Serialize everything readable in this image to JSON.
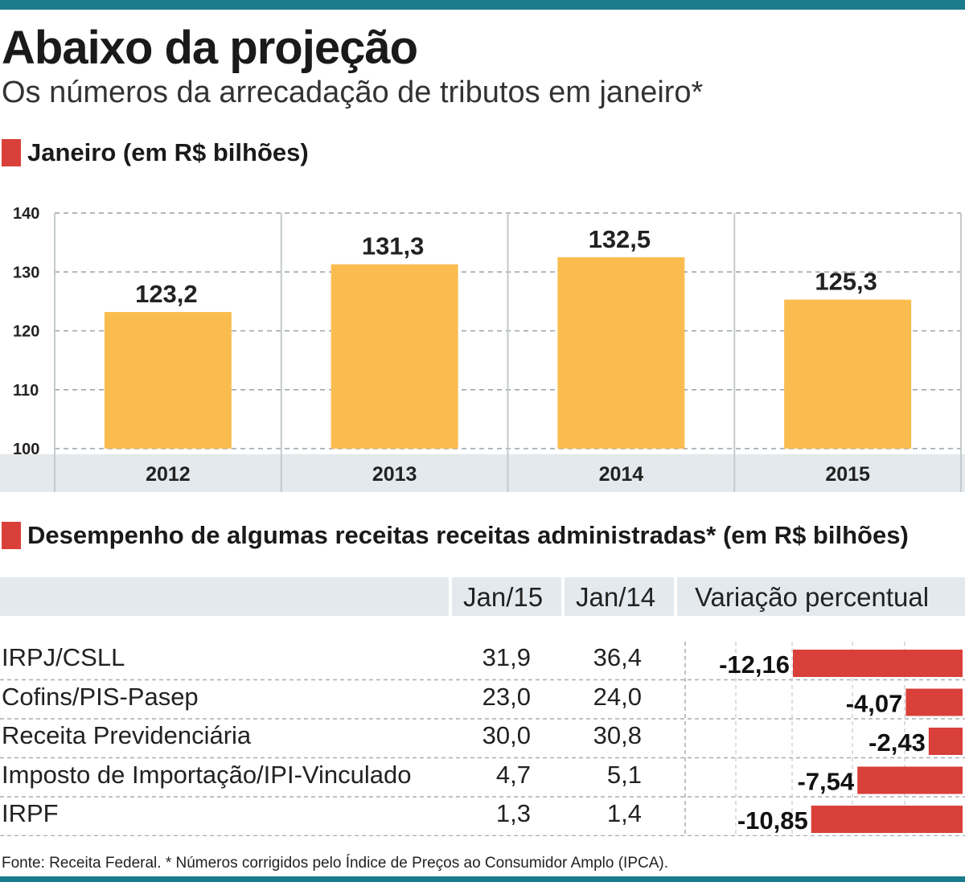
{
  "title": "Abaixo da projeção",
  "subtitle": "Os números da arrecadação de tributos em janeiro*",
  "section1": {
    "label": "Janeiro (em R$ bilhões)"
  },
  "section2": {
    "label": "Desempenho de algumas receitas  receitas administradas* (em R$ bilhões)"
  },
  "colors": {
    "accent": "#d9403a",
    "bar": "#fbbc4f",
    "brand": "#1b7a8c",
    "band": "#e3e9ed"
  },
  "chart_data": [
    {
      "type": "bar",
      "title": "Janeiro (em R$ bilhões)",
      "categories": [
        "2012",
        "2013",
        "2014",
        "2015"
      ],
      "values": [
        123.2,
        131.3,
        132.5,
        125.3
      ],
      "value_labels": [
        "123,2",
        "131,3",
        "132,5",
        "125,3"
      ],
      "yticks": [
        "100",
        "110",
        "120",
        "130",
        "140"
      ],
      "ylim": [
        100,
        140
      ],
      "xlabel": "",
      "ylabel": ""
    },
    {
      "type": "bar",
      "title": "Variação percentual",
      "categories": [
        "IRPJ/CSLL",
        "Cofins/PIS-Pasep",
        "Receita Previdenciária",
        "Imposto de Importação/IPI-Vinculado",
        "IRPF"
      ],
      "values": [
        -12.16,
        -4.07,
        -2.43,
        -7.54,
        -10.85
      ],
      "value_labels": [
        "-12,16",
        "-4,07",
        "-2,43",
        "-7,54",
        "-10,85"
      ],
      "xlim": [
        -12.16,
        0
      ]
    }
  ],
  "table": {
    "headers": {
      "jan15": "Jan/15",
      "jan14": "Jan/14",
      "variation": "Variação percentual"
    },
    "rows": [
      {
        "name": "IRPJ/CSLL",
        "jan15": "31,9",
        "jan14": "36,4"
      },
      {
        "name": "Cofins/PIS-Pasep",
        "jan15": "23,0",
        "jan14": "24,0"
      },
      {
        "name": "Receita Previdenciária",
        "jan15": "30,0",
        "jan14": "30,8"
      },
      {
        "name": "Imposto de Importação/IPI-Vinculado",
        "jan15": "4,7",
        "jan14": "5,1"
      },
      {
        "name": "IRPF",
        "jan15": "1,3",
        "jan14": "1,4"
      }
    ]
  },
  "footnote": "Fonte: Receita Federal. * Números corrigidos pelo Índice de Preços ao Consumidor Amplo (IPCA)."
}
